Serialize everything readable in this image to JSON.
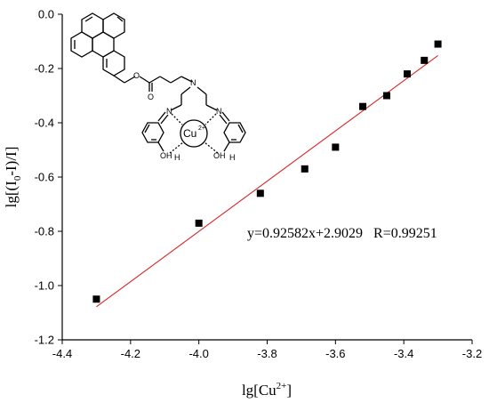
{
  "chart_data": {
    "type": "scatter",
    "title": "",
    "xlabel": "lg[Cu",
    "xlabel_sup": "2+",
    "xlabel_end": "]",
    "ylabel": "lg[(I",
    "ylabel_sub": "0",
    "ylabel_end": "-I)/I]",
    "xlim": [
      -4.4,
      -3.2
    ],
    "ylim": [
      -1.2,
      0.0
    ],
    "x_ticks": [
      -4.4,
      -4.2,
      -4.0,
      -3.8,
      -3.6,
      -3.4,
      -3.2
    ],
    "x_tick_labels": [
      "-4.4",
      "-4.2",
      "-4.0",
      "-3.8",
      "-3.6",
      "-3.4",
      "-3.2"
    ],
    "y_ticks": [
      0.0,
      -0.2,
      -0.4,
      -0.6,
      -0.8,
      -1.0,
      -1.2
    ],
    "y_tick_labels": [
      "0.0",
      "-0.2",
      "-0.4",
      "-0.6",
      "-0.8",
      "-1.0",
      "-1.2"
    ],
    "grid": false,
    "series": [
      {
        "marker": "square",
        "color": "#000000",
        "x": [
          -4.3,
          -4.0,
          -3.82,
          -3.69,
          -3.6,
          -3.52,
          -3.45,
          -3.39,
          -3.34,
          -3.3
        ],
        "y": [
          -1.05,
          -0.77,
          -0.66,
          -0.57,
          -0.49,
          -0.34,
          -0.3,
          -0.22,
          -0.17,
          -0.11
        ]
      }
    ],
    "fit_line": {
      "color": "#d62728",
      "slope": 0.92582,
      "intercept": 2.9029,
      "x_range": [
        -4.3,
        -3.3
      ]
    },
    "annotations": [
      "y=0.92582x+2.9029   R=0.99251"
    ],
    "inset": {
      "description_icon": "pyrene-schiff-base-cu-complex-structure",
      "labels": [
        "O",
        "O",
        "N",
        "N",
        "N",
        "Cu",
        "2+",
        "OH",
        "H",
        "OH",
        "H"
      ]
    }
  }
}
